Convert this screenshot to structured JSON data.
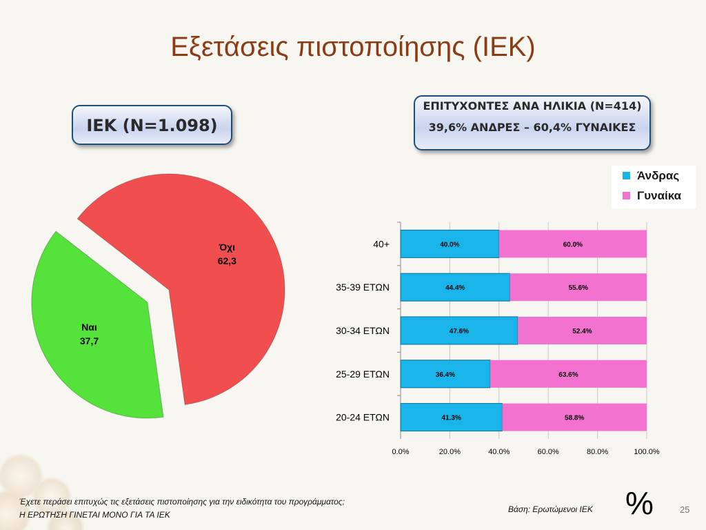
{
  "title": "Εξετάσεις πιστοποίησης (ΙΕΚ)",
  "box_iek": "ΙΕΚ (Ν=1.098)",
  "box_age": {
    "line1": "ΕΠΙΤΥΧΟΝΤΕΣ ΑΝΑ ΗΛΙΚΙΑ (Ν=414)",
    "line2": "39,6% ΑΝΔΡΕΣ – 60,4% ΓΥΝΑΙΚΕΣ"
  },
  "legend": [
    {
      "label": "Άνδρας",
      "color": "#19b4ea"
    },
    {
      "label": "Γυναίκα",
      "color": "#f472cf"
    }
  ],
  "chart_data": [
    {
      "type": "pie",
      "slices": [
        {
          "label": "Όχι",
          "value": 62.3,
          "value_label": "62,3",
          "color": "#f14f4f",
          "exploded": false
        },
        {
          "label": "Ναι",
          "value": 37.7,
          "value_label": "37,7",
          "color": "#55e23a",
          "exploded": true
        }
      ]
    },
    {
      "type": "bar",
      "orientation": "horizontal",
      "stacked": true,
      "categories": [
        "40+",
        "35-39 ΕΤΩΝ",
        "30-34 ΕΤΩΝ",
        "25-29 ΕΤΩΝ",
        "20-24 ΕΤΩΝ"
      ],
      "series": [
        {
          "name": "Άνδρας",
          "values": [
            40.0,
            44.4,
            47.6,
            36.4,
            41.3
          ],
          "labels": [
            "40.0%",
            "44.4%",
            "47.6%",
            "36.4%",
            "41.3%"
          ],
          "color": "#19b4ea"
        },
        {
          "name": "Γυναίκα",
          "values": [
            60.0,
            55.6,
            52.4,
            63.6,
            58.8
          ],
          "labels": [
            "60.0%",
            "55.6%",
            "52.4%",
            "63.6%",
            "58.8%"
          ],
          "color": "#f472cf"
        }
      ],
      "xlim": [
        0,
        100
      ],
      "xticks": [
        "0.0%",
        "20.0%",
        "40.0%",
        "60.0%",
        "80.0%",
        "100.0%"
      ],
      "grid": "vertical"
    }
  ],
  "footer": {
    "question": "Έχετε περάσει επιτυχώς τις εξετάσεις πιστοποίησης για την ειδικότητα του προγράμματος;",
    "note": "Η ΕΡΩΤΗΣΗ ΓΙΝΕΤΑΙ ΜΟΝΟ ΓΙΑ ΤΑ ΙΕΚ",
    "base": "Βάση: Ερωτώμενοι ΙΕΚ",
    "percent_sign": "%",
    "page_number": "25"
  }
}
